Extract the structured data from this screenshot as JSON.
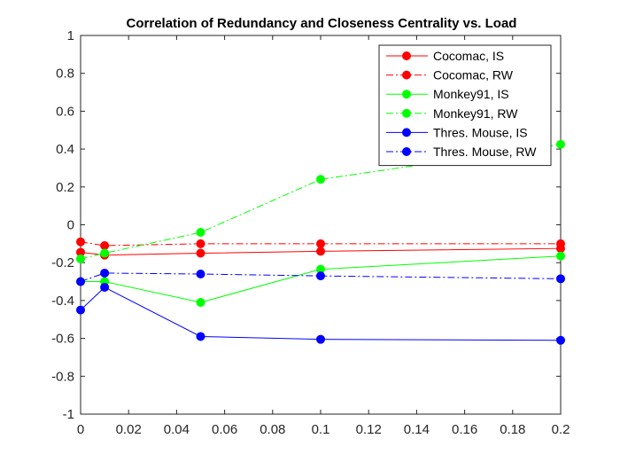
{
  "chart_data": {
    "type": "line",
    "title": "Correlation of Redundancy and Closeness Centrality vs. Load",
    "xlabel": "",
    "ylabel": "",
    "x": [
      0,
      0.01,
      0.05,
      0.1,
      0.2
    ],
    "xlim": [
      0,
      0.2
    ],
    "ylim": [
      -1,
      1
    ],
    "xticks": [
      0,
      0.02,
      0.04,
      0.06,
      0.08,
      0.1,
      0.12,
      0.14,
      0.16,
      0.18,
      0.2
    ],
    "yticks": [
      -1,
      -0.8,
      -0.6,
      -0.4,
      -0.2,
      0,
      0.2,
      0.4,
      0.6,
      0.8,
      1
    ],
    "xtick_labels": [
      "0",
      "0.02",
      "0.04",
      "0.06",
      "0.08",
      "0.1",
      "0.12",
      "0.14",
      "0.16",
      "0.18",
      "0.2"
    ],
    "ytick_labels": [
      "-1",
      "-0.8",
      "-0.6",
      "-0.4",
      "-0.2",
      "0",
      "0.2",
      "0.4",
      "0.6",
      "0.8",
      "1"
    ],
    "grid": false,
    "legend_position": "top-right",
    "series": [
      {
        "name": "Cocomac, IS",
        "color": "#ff0000",
        "style": "solid",
        "values": [
          -0.145,
          -0.16,
          -0.15,
          -0.14,
          -0.125
        ]
      },
      {
        "name": "Cocomac, RW",
        "color": "#ff0000",
        "style": "dashdot",
        "values": [
          -0.09,
          -0.11,
          -0.1,
          -0.1,
          -0.1
        ]
      },
      {
        "name": "Monkey91, IS",
        "color": "#00ff00",
        "style": "solid",
        "values": [
          -0.3,
          -0.3,
          -0.41,
          -0.235,
          -0.165
        ]
      },
      {
        "name": "Monkey91, RW",
        "color": "#00ff00",
        "style": "dashdot",
        "values": [
          -0.18,
          -0.15,
          -0.04,
          0.24,
          0.425
        ]
      },
      {
        "name": "Thres. Mouse, IS",
        "color": "#0000ff",
        "style": "solid",
        "values": [
          -0.45,
          -0.33,
          -0.59,
          -0.605,
          -0.61
        ]
      },
      {
        "name": "Thres. Mouse, RW",
        "color": "#0000ff",
        "style": "dashdot",
        "values": [
          -0.3,
          -0.255,
          -0.26,
          -0.27,
          -0.285
        ]
      }
    ]
  }
}
